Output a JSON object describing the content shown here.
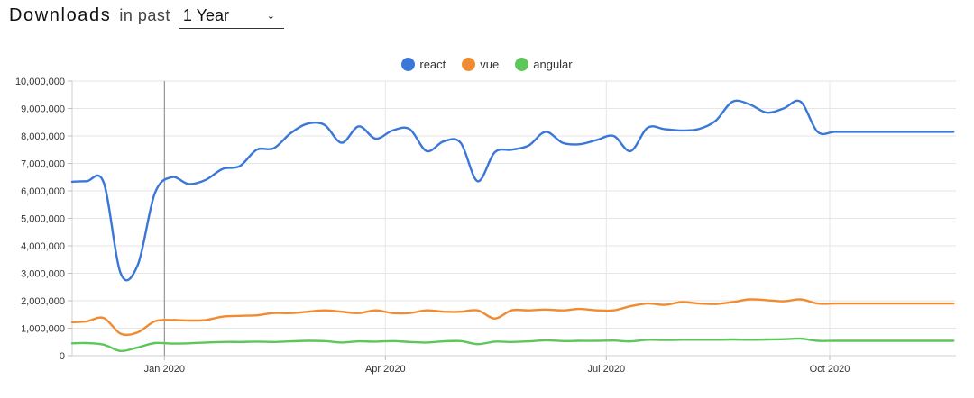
{
  "header": {
    "title": "Downloads",
    "subtitle": "in past",
    "period": "1 Year"
  },
  "chart_data": {
    "type": "line",
    "xlabel": "",
    "ylabel": "",
    "ylim": [
      0,
      10000000
    ],
    "y_ticks": [
      0,
      1000000,
      2000000,
      3000000,
      4000000,
      5000000,
      6000000,
      7000000,
      8000000,
      9000000,
      10000000
    ],
    "y_tick_labels": [
      "0",
      "1,000,000",
      "2,000,000",
      "3,000,000",
      "4,000,000",
      "5,000,000",
      "6,000,000",
      "7,000,000",
      "8,000,000",
      "9,000,000",
      "10,000,000"
    ],
    "x_range": [
      "2019-11-24",
      "2020-11-22"
    ],
    "x_ticks": [
      "2020-01-01",
      "2020-04-01",
      "2020-07-01",
      "2020-10-01"
    ],
    "x_tick_labels": [
      "Jan 2020",
      "Apr 2020",
      "Jul 2020",
      "Oct 2020"
    ],
    "grid": true,
    "legend_position": "top-center",
    "crosshair_x": "2020-01-01",
    "x": [
      "2019-11-24",
      "2019-11-30",
      "2019-12-07",
      "2019-12-14",
      "2019-12-21",
      "2019-12-28",
      "2020-01-04",
      "2020-01-11",
      "2020-01-18",
      "2020-01-25",
      "2020-02-01",
      "2020-02-08",
      "2020-02-15",
      "2020-02-22",
      "2020-02-29",
      "2020-03-07",
      "2020-03-14",
      "2020-03-21",
      "2020-03-28",
      "2020-04-04",
      "2020-04-11",
      "2020-04-18",
      "2020-04-25",
      "2020-05-02",
      "2020-05-09",
      "2020-05-16",
      "2020-05-23",
      "2020-05-30",
      "2020-06-06",
      "2020-06-13",
      "2020-06-20",
      "2020-06-27",
      "2020-07-04",
      "2020-07-11",
      "2020-07-18",
      "2020-07-25",
      "2020-08-01",
      "2020-08-08",
      "2020-08-15",
      "2020-08-22",
      "2020-08-29",
      "2020-09-05",
      "2020-09-12",
      "2020-09-19",
      "2020-09-26",
      "2020-10-03",
      "2020-10-10",
      "2020-10-17",
      "2020-10-24",
      "2020-10-31",
      "2020-11-07",
      "2020-11-14",
      "2020-11-21"
    ],
    "series": [
      {
        "name": "react",
        "color": "#3a77d8",
        "values": [
          6330000,
          6350000,
          6300000,
          3000000,
          3300000,
          5900000,
          6500000,
          6250000,
          6400000,
          6800000,
          6900000,
          7500000,
          7550000,
          8100000,
          8450000,
          8400000,
          7750000,
          8350000,
          7900000,
          8200000,
          8250000,
          7450000,
          7800000,
          7750000,
          6350000,
          7400000,
          7500000,
          7650000,
          8150000,
          7750000,
          7700000,
          7850000,
          8000000,
          7450000,
          8300000,
          8250000,
          8200000,
          8250000,
          8550000,
          9250000,
          9150000,
          8850000,
          9000000,
          9250000,
          8150000,
          8150000,
          8150000,
          8150000,
          8150000,
          8150000,
          8150000,
          8150000,
          8150000
        ]
      },
      {
        "name": "vue",
        "color": "#f08b32",
        "values": [
          1220000,
          1250000,
          1370000,
          800000,
          850000,
          1250000,
          1300000,
          1280000,
          1300000,
          1420000,
          1450000,
          1470000,
          1550000,
          1550000,
          1600000,
          1650000,
          1600000,
          1550000,
          1650000,
          1550000,
          1550000,
          1650000,
          1600000,
          1600000,
          1650000,
          1350000,
          1650000,
          1650000,
          1680000,
          1650000,
          1700000,
          1650000,
          1650000,
          1800000,
          1900000,
          1850000,
          1950000,
          1900000,
          1880000,
          1950000,
          2050000,
          2020000,
          1980000,
          2050000,
          1900000,
          1900000,
          1900000,
          1900000,
          1900000,
          1900000,
          1900000,
          1900000,
          1900000
        ]
      },
      {
        "name": "angular",
        "color": "#5ec75a",
        "values": [
          450000,
          460000,
          400000,
          170000,
          300000,
          460000,
          440000,
          450000,
          480000,
          500000,
          500000,
          510000,
          500000,
          520000,
          540000,
          530000,
          480000,
          520000,
          510000,
          530000,
          500000,
          480000,
          520000,
          530000,
          420000,
          510000,
          500000,
          520000,
          560000,
          530000,
          540000,
          540000,
          550000,
          520000,
          580000,
          570000,
          580000,
          580000,
          580000,
          590000,
          580000,
          590000,
          600000,
          620000,
          540000,
          540000,
          540000,
          540000,
          540000,
          540000,
          540000,
          540000,
          540000
        ]
      }
    ]
  }
}
